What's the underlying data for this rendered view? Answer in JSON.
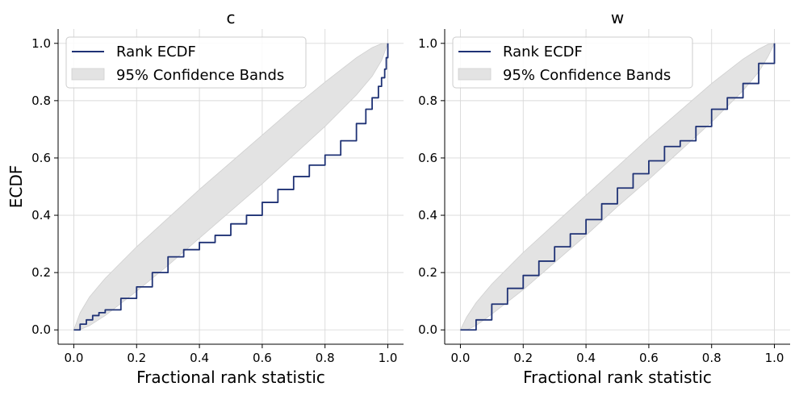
{
  "chart_data": [
    {
      "type": "line",
      "title": "c",
      "xlabel": "Fractional rank statistic",
      "ylabel": "ECDF",
      "xlim": [
        -0.05,
        1.05
      ],
      "ylim": [
        -0.05,
        1.05
      ],
      "xticks": [
        "0.0",
        "0.2",
        "0.4",
        "0.6",
        "0.8",
        "1.0"
      ],
      "yticks": [
        "0.0",
        "0.2",
        "0.4",
        "0.6",
        "0.8",
        "1.0"
      ],
      "grid": true,
      "legend": {
        "placement": "top-left",
        "line_label": "Rank ECDF",
        "band_label": "95% Confidence Bands"
      },
      "colors": {
        "line": "#1f3275",
        "band": "#e3e3e3",
        "band_edge": "#cfcfcf"
      },
      "series": [
        {
          "name": "Rank ECDF",
          "x": [
            0,
            0.02,
            0.04,
            0.06,
            0.08,
            0.1,
            0.15,
            0.2,
            0.25,
            0.3,
            0.35,
            0.4,
            0.45,
            0.5,
            0.55,
            0.6,
            0.65,
            0.7,
            0.75,
            0.8,
            0.85,
            0.9,
            0.93,
            0.95,
            0.97,
            0.98,
            0.99,
            0.995,
            1.0
          ],
          "y": [
            0,
            0.02,
            0.035,
            0.05,
            0.06,
            0.07,
            0.11,
            0.15,
            0.2,
            0.255,
            0.28,
            0.305,
            0.33,
            0.37,
            0.4,
            0.445,
            0.49,
            0.535,
            0.575,
            0.61,
            0.66,
            0.72,
            0.77,
            0.81,
            0.85,
            0.88,
            0.91,
            0.95,
            1.0
          ]
        }
      ],
      "band": {
        "name": "95% Confidence Bands",
        "x": [
          0,
          0.02,
          0.05,
          0.1,
          0.2,
          0.3,
          0.4,
          0.5,
          0.6,
          0.7,
          0.8,
          0.9,
          0.95,
          0.98,
          1.0
        ],
        "lower": [
          0,
          0.001,
          0.015,
          0.05,
          0.135,
          0.225,
          0.32,
          0.415,
          0.51,
          0.61,
          0.71,
          0.82,
          0.885,
          0.94,
          1.0
        ],
        "upper": [
          0,
          0.06,
          0.115,
          0.18,
          0.29,
          0.39,
          0.49,
          0.585,
          0.68,
          0.775,
          0.865,
          0.95,
          0.985,
          0.999,
          1.0
        ]
      }
    },
    {
      "type": "line",
      "title": "w",
      "xlabel": "Fractional rank statistic",
      "ylabel": "",
      "xlim": [
        -0.05,
        1.05
      ],
      "ylim": [
        -0.05,
        1.05
      ],
      "xticks": [
        "0.0",
        "0.2",
        "0.4",
        "0.6",
        "0.8",
        "1.0"
      ],
      "yticks": [
        "0.0",
        "0.2",
        "0.4",
        "0.6",
        "0.8",
        "1.0"
      ],
      "grid": true,
      "legend": {
        "placement": "top-left",
        "line_label": "Rank ECDF",
        "band_label": "95% Confidence Bands"
      },
      "colors": {
        "line": "#1f3275",
        "band": "#e3e3e3",
        "band_edge": "#cfcfcf"
      },
      "series": [
        {
          "name": "Rank ECDF",
          "x": [
            0,
            0.05,
            0.1,
            0.15,
            0.2,
            0.25,
            0.3,
            0.35,
            0.4,
            0.45,
            0.5,
            0.55,
            0.6,
            0.65,
            0.7,
            0.75,
            0.8,
            0.85,
            0.9,
            0.95,
            1.0
          ],
          "y": [
            0,
            0.035,
            0.09,
            0.145,
            0.19,
            0.24,
            0.29,
            0.335,
            0.385,
            0.44,
            0.495,
            0.545,
            0.59,
            0.64,
            0.66,
            0.71,
            0.77,
            0.81,
            0.86,
            0.93,
            1.0
          ]
        }
      ],
      "band": {
        "name": "95% Confidence Bands",
        "x": [
          0,
          0.02,
          0.05,
          0.1,
          0.2,
          0.3,
          0.4,
          0.5,
          0.6,
          0.7,
          0.8,
          0.9,
          0.95,
          0.98,
          1.0
        ],
        "lower": [
          0,
          0.0,
          0.015,
          0.055,
          0.14,
          0.235,
          0.33,
          0.43,
          0.525,
          0.625,
          0.725,
          0.835,
          0.9,
          0.955,
          1.0
        ],
        "upper": [
          0,
          0.045,
          0.095,
          0.16,
          0.27,
          0.37,
          0.47,
          0.57,
          0.67,
          0.765,
          0.86,
          0.945,
          0.98,
          0.997,
          1.0
        ]
      }
    }
  ]
}
